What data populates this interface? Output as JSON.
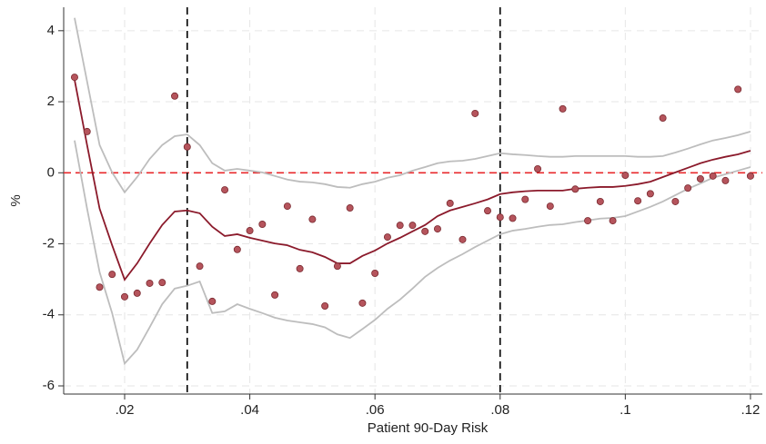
{
  "chart_data": {
    "type": "scatter",
    "x_label": "Patient 90-Day Risk",
    "y_label": "%",
    "xlim": [
      0.01026,
      0.1219
    ],
    "ylim": [
      -6.23,
      4.66
    ],
    "xticks": [
      {
        "value": 0.02,
        "label": ".02"
      },
      {
        "value": 0.04,
        "label": ".04"
      },
      {
        "value": 0.06,
        "label": ".06"
      },
      {
        "value": 0.08,
        "label": ".08"
      },
      {
        "value": 0.1,
        "label": ".1"
      },
      {
        "value": 0.12,
        "label": ".12"
      }
    ],
    "yticks": [
      4,
      2,
      0,
      -2,
      -4,
      -6
    ],
    "grid": true,
    "vlines": [
      0.03,
      0.08
    ],
    "vline_color": "#000000",
    "hline": 0,
    "hline_color": "#e8282b",
    "x": [
      0.012,
      0.014,
      0.016,
      0.018,
      0.02,
      0.022,
      0.024,
      0.026,
      0.028,
      0.03,
      0.032,
      0.034,
      0.036,
      0.038,
      0.04,
      0.042,
      0.044,
      0.046,
      0.048,
      0.05,
      0.052,
      0.054,
      0.056,
      0.058,
      0.06,
      0.062,
      0.064,
      0.066,
      0.068,
      0.07,
      0.072,
      0.074,
      0.076,
      0.078,
      0.08,
      0.082,
      0.084,
      0.086,
      0.088,
      0.09,
      0.092,
      0.094,
      0.096,
      0.098,
      0.1,
      0.102,
      0.104,
      0.106,
      0.108,
      0.11,
      0.112,
      0.114,
      0.116,
      0.118,
      0.12
    ],
    "series": [
      {
        "mark": "line",
        "color": "#bdbdbd",
        "values": [
          4.36,
          2.57,
          0.78,
          0.01,
          -0.55,
          -0.12,
          0.39,
          0.78,
          1.03,
          1.08,
          0.78,
          0.27,
          0.06,
          0.11,
          0.06,
          0.01,
          -0.09,
          -0.19,
          -0.25,
          -0.27,
          -0.32,
          -0.4,
          -0.42,
          -0.32,
          -0.25,
          -0.14,
          -0.07,
          0.06,
          0.16,
          0.27,
          0.32,
          0.34,
          0.39,
          0.47,
          0.55,
          0.52,
          0.5,
          0.47,
          0.45,
          0.45,
          0.47,
          0.47,
          0.47,
          0.47,
          0.47,
          0.45,
          0.45,
          0.47,
          0.57,
          0.68,
          0.8,
          0.91,
          0.98,
          1.06,
          1.16
        ]
      },
      {
        "mark": "line",
        "color": "#bdbdbd",
        "values": [
          0.91,
          -1.01,
          -2.8,
          -3.95,
          -5.37,
          -4.98,
          -4.35,
          -3.7,
          -3.26,
          -3.18,
          -3.06,
          -3.95,
          -3.9,
          -3.7,
          -3.83,
          -3.95,
          -4.08,
          -4.16,
          -4.21,
          -4.26,
          -4.35,
          -4.55,
          -4.65,
          -4.4,
          -4.14,
          -3.83,
          -3.57,
          -3.26,
          -2.93,
          -2.68,
          -2.47,
          -2.29,
          -2.09,
          -1.91,
          -1.73,
          -1.63,
          -1.58,
          -1.52,
          -1.47,
          -1.45,
          -1.39,
          -1.34,
          -1.29,
          -1.27,
          -1.22,
          -1.09,
          -0.96,
          -0.81,
          -0.63,
          -0.45,
          -0.3,
          -0.14,
          -0.04,
          0.06,
          0.16
        ]
      },
      {
        "mark": "line",
        "color": "#8b1a2b",
        "values": [
          2.62,
          0.78,
          -1.01,
          -2.04,
          -3.01,
          -2.55,
          -1.99,
          -1.47,
          -1.09,
          -1.06,
          -1.14,
          -1.52,
          -1.78,
          -1.73,
          -1.83,
          -1.91,
          -1.99,
          -2.04,
          -2.17,
          -2.24,
          -2.37,
          -2.55,
          -2.55,
          -2.34,
          -2.19,
          -1.99,
          -1.83,
          -1.65,
          -1.47,
          -1.22,
          -1.06,
          -0.96,
          -0.86,
          -0.75,
          -0.6,
          -0.55,
          -0.52,
          -0.5,
          -0.5,
          -0.5,
          -0.45,
          -0.42,
          -0.4,
          -0.4,
          -0.37,
          -0.32,
          -0.25,
          -0.12,
          0.01,
          0.14,
          0.27,
          0.37,
          0.45,
          0.52,
          0.62
        ]
      },
      {
        "mark": "point",
        "color": "#b5545c",
        "values": [
          2.69,
          1.16,
          -3.22,
          -2.86,
          -3.49,
          -3.39,
          -3.11,
          -3.09,
          2.16,
          0.73,
          -2.63,
          -3.62,
          -0.48,
          -2.16,
          -1.63,
          -1.45,
          -3.44,
          -0.94,
          -2.7,
          -1.31,
          -3.75,
          -2.63,
          -0.99,
          -3.67,
          -2.83,
          -1.81,
          -1.48,
          -1.48,
          -1.65,
          -1.58,
          -0.86,
          -1.88,
          1.67,
          -1.07,
          -1.25,
          -1.28,
          -0.75,
          0.11,
          -0.94,
          1.8,
          -0.46,
          -1.35,
          -0.81,
          -1.35,
          -0.07,
          -0.79,
          -0.59,
          1.54,
          -0.81,
          -0.43,
          -0.17,
          -0.09,
          -0.22,
          2.35,
          -0.09
        ]
      }
    ]
  }
}
